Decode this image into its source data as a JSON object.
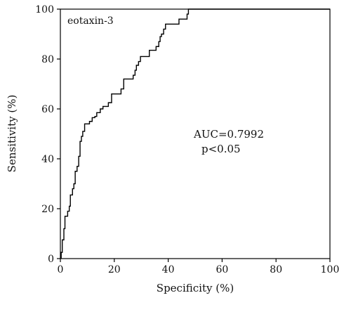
{
  "chart_data": {
    "type": "line",
    "title": "",
    "xlabel": "Specificity (%)",
    "ylabel": "Sensitivity (%)",
    "xlim": [
      0,
      100
    ],
    "ylim": [
      0,
      100
    ],
    "x_ticks": [
      0,
      20,
      40,
      60,
      80,
      100
    ],
    "y_ticks": [
      0,
      20,
      40,
      60,
      80,
      100
    ],
    "x_tick_labels": [
      "0",
      "20",
      "40",
      "60",
      "80",
      "100"
    ],
    "y_tick_labels": [
      "0",
      "20",
      "40",
      "60",
      "80",
      "100"
    ],
    "grid": false,
    "line_style": "step",
    "line_color": "#000000",
    "series": [
      {
        "name": "eotaxin-3",
        "x": [
          0.3,
          0.3,
          0.7,
          0.7,
          1.3,
          1.3,
          1.7,
          1.7,
          2.7,
          2.7,
          3.3,
          3.3,
          3.7,
          3.7,
          4.5,
          4.5,
          5.0,
          5.0,
          5.5,
          5.5,
          6.2,
          6.2,
          6.8,
          6.8,
          7.3,
          7.3,
          7.8,
          7.8,
          8.3,
          8.3,
          9.0,
          9.0,
          10.8,
          10.8,
          11.8,
          11.8,
          12.8,
          12.8,
          13.5,
          13.5,
          14.8,
          14.8,
          15.8,
          15.8,
          17.8,
          17.8,
          19.0,
          19.0,
          22.5,
          22.5,
          23.5,
          23.5,
          27.0,
          27.0,
          27.7,
          27.7,
          28.2,
          28.2,
          29.0,
          29.0,
          29.7,
          29.7,
          33.0,
          33.0,
          35.5,
          35.5,
          36.5,
          36.5,
          37.0,
          37.0,
          37.5,
          37.5,
          38.3,
          38.3,
          39.0,
          39.0,
          44.0,
          44.0,
          47.0,
          47.0,
          47.5,
          47.5,
          50.5,
          50.5,
          51.0,
          51.0,
          53.5,
          53.5,
          59.5,
          59.5,
          68.0,
          68.0,
          100.0
        ],
        "y": [
          0,
          2.5,
          2.5,
          7.5,
          7.5,
          12.0,
          12.0,
          17.0,
          17.0,
          19.0,
          19.0,
          21.0,
          21.0,
          25.5,
          25.5,
          28.0,
          28.0,
          30.0,
          30.0,
          35.0,
          35.0,
          37.0,
          37.0,
          41.0,
          41.0,
          47.0,
          47.0,
          49.0,
          49.0,
          51.0,
          51.0,
          54.0,
          54.0,
          55.0,
          55.0,
          56.5,
          56.5,
          57.0,
          57.0,
          58.5,
          58.5,
          60.0,
          60.0,
          61.0,
          61.0,
          62.5,
          62.5,
          66.0,
          66.0,
          68.0,
          68.0,
          72.0,
          72.0,
          73.5,
          73.5,
          75.5,
          75.5,
          77.5,
          77.5,
          79.0,
          79.0,
          81.0,
          81.0,
          83.5,
          83.5,
          85.0,
          85.0,
          87.0,
          87.0,
          89.0,
          89.0,
          90.0,
          90.0,
          92.0,
          92.0,
          94.0,
          94.0,
          96.0,
          96.0,
          98.0,
          98.0,
          100.0,
          100.0,
          100.0,
          100.0,
          100.0,
          100.0,
          100.0,
          100.0,
          100.0,
          100.0,
          100.0,
          100.0
        ]
      }
    ],
    "annotations": [
      "AUC=0.7992",
      "p<0.05"
    ]
  }
}
